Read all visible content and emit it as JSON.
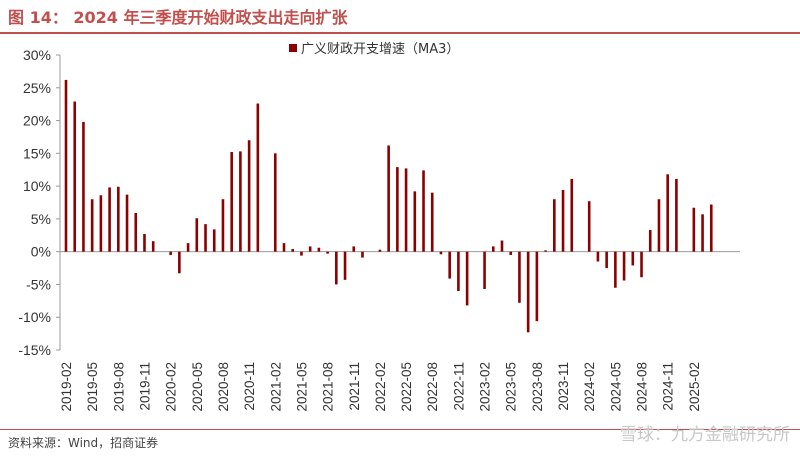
{
  "header": {
    "title": "图 14：  2024 年三季度开始财政支出走向扩张"
  },
  "footer": {
    "source": "资料来源：Wind，招商证券"
  },
  "watermark": {
    "text": "雪球：九方金融研究所"
  },
  "colors": {
    "bar": "#8b0000",
    "accent": "#c0504d",
    "axis": "#999999",
    "text": "#333333"
  },
  "chart_data": {
    "type": "bar",
    "title": "",
    "xlabel": "",
    "ylabel": "",
    "ylim": [
      -0.15,
      0.3
    ],
    "yticks": [
      -0.15,
      -0.1,
      -0.05,
      0.0,
      0.05,
      0.1,
      0.15,
      0.2,
      0.25,
      0.3
    ],
    "ytick_labels": [
      "-15%",
      "-10%",
      "-5%",
      "0%",
      "5%",
      "10%",
      "15%",
      "20%",
      "25%",
      "30%"
    ],
    "grid": false,
    "legend": {
      "position": "top-center",
      "entries": [
        "广义财政开支增速（MA3）"
      ]
    },
    "x_tick_labels": [
      "2019-02",
      "2019-05",
      "2019-08",
      "2019-11",
      "2020-02",
      "2020-05",
      "2020-08",
      "2020-11",
      "2021-02",
      "2021-05",
      "2021-08",
      "2021-11",
      "2022-02",
      "2022-05",
      "2022-08",
      "2022-11",
      "2023-02",
      "2023-05",
      "2023-08",
      "2023-11",
      "2024-02",
      "2024-05",
      "2024-08",
      "2024-11",
      "2025-02"
    ],
    "categories": [
      "2019-02",
      "2019-03",
      "2019-04",
      "2019-05",
      "2019-06",
      "2019-07",
      "2019-08",
      "2019-09",
      "2019-10",
      "2019-11",
      "2019-12",
      "2020-01",
      "2020-02",
      "2020-03",
      "2020-04",
      "2020-05",
      "2020-06",
      "2020-07",
      "2020-08",
      "2020-09",
      "2020-10",
      "2020-11",
      "2020-12",
      "2021-01",
      "2021-02",
      "2021-03",
      "2021-04",
      "2021-05",
      "2021-06",
      "2021-07",
      "2021-08",
      "2021-09",
      "2021-10",
      "2021-11",
      "2021-12",
      "2022-01",
      "2022-02",
      "2022-03",
      "2022-04",
      "2022-05",
      "2022-06",
      "2022-07",
      "2022-08",
      "2022-09",
      "2022-10",
      "2022-11",
      "2022-12",
      "2023-01",
      "2023-02",
      "2023-03",
      "2023-04",
      "2023-05",
      "2023-06",
      "2023-07",
      "2023-08",
      "2023-09",
      "2023-10",
      "2023-11",
      "2023-12",
      "2024-01",
      "2024-02",
      "2024-03",
      "2024-04",
      "2024-05",
      "2024-06",
      "2024-07",
      "2024-08",
      "2024-09",
      "2024-10",
      "2024-11",
      "2024-12",
      "2025-01",
      "2025-02",
      "2025-03",
      "2025-04"
    ],
    "series": [
      {
        "name": "广义财政开支增速（MA3）",
        "values": [
          0.262,
          0.229,
          0.198,
          0.08,
          0.086,
          0.098,
          0.099,
          0.087,
          0.059,
          0.027,
          0.016,
          null,
          -0.005,
          -0.033,
          0.013,
          0.051,
          0.042,
          0.034,
          0.08,
          0.152,
          0.153,
          0.17,
          0.226,
          null,
          0.15,
          0.013,
          0.004,
          -0.006,
          0.008,
          0.006,
          -0.003,
          -0.05,
          -0.043,
          0.008,
          -0.009,
          null,
          0.003,
          0.162,
          0.129,
          0.127,
          0.092,
          0.124,
          0.09,
          -0.004,
          -0.041,
          -0.06,
          -0.082,
          null,
          -0.057,
          0.008,
          0.017,
          -0.005,
          -0.078,
          -0.123,
          -0.106,
          0.002,
          0.08,
          0.094,
          0.111,
          null,
          0.077,
          -0.015,
          -0.025,
          -0.055,
          -0.044,
          -0.021,
          -0.039,
          0.033,
          0.08,
          0.118,
          0.111,
          null,
          0.067,
          0.057,
          0.072
        ]
      }
    ]
  }
}
